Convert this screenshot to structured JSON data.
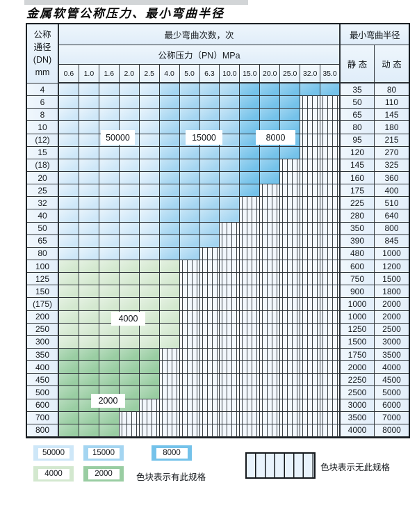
{
  "title": "金属软管公称压力、最小弯曲半径",
  "colors": {
    "cycles_50000": "#cee7f8",
    "cycles_15000": "#a4d5f1",
    "cycles_8000": "#74c2ea",
    "cycles_4000": "#d3e8cf",
    "cycles_2000": "#99cda2",
    "no_spec_stripe": "#3c4247",
    "header_bg": "#e6f0fa",
    "border": "#2d3338"
  },
  "table": {
    "dn_lines": [
      "公称",
      "通径",
      "(DN)",
      "mm"
    ],
    "cycles_header": "最少弯曲次数，次",
    "pressure_header": "公称压力（PN）MPa",
    "radius_header": "最小弯曲半径",
    "static_label": "静 态",
    "dynamic_label": "动 态",
    "pressure_cols": [
      "0.6",
      "1.0",
      "1.6",
      "2.0",
      "2.5",
      "4.0",
      "5.0",
      "6.3",
      "10.0",
      "15.0",
      "20.0",
      "25.0",
      "32.0",
      "35.0"
    ],
    "spec_legend_map": {
      "1": "50000",
      "2": "15000",
      "3": "8000",
      "4": "4000",
      "5": "2000",
      "x": "none"
    },
    "rows": [
      {
        "dn": "4",
        "spec": "11111222233333",
        "static": "35",
        "dynamic": "80"
      },
      {
        "dn": "6",
        "spec": "111112222333xx",
        "static": "50",
        "dynamic": "110"
      },
      {
        "dn": "8",
        "spec": "111112222333xx",
        "static": "65",
        "dynamic": "145"
      },
      {
        "dn": "10",
        "spec": "111112222333xx",
        "static": "80",
        "dynamic": "180"
      },
      {
        "dn": "(12)",
        "spec": "111112222333xx",
        "static": "95",
        "dynamic": "215"
      },
      {
        "dn": "15",
        "spec": "111112222333xx",
        "static": "120",
        "dynamic": "270"
      },
      {
        "dn": "(18)",
        "spec": "11111222233xxx",
        "static": "145",
        "dynamic": "325"
      },
      {
        "dn": "20",
        "spec": "11111222233xxx",
        "static": "160",
        "dynamic": "360"
      },
      {
        "dn": "25",
        "spec": "1111122223xxxx",
        "static": "175",
        "dynamic": "400"
      },
      {
        "dn": "32",
        "spec": "111112222xxxxx",
        "static": "225",
        "dynamic": "510"
      },
      {
        "dn": "40",
        "spec": "111112222xxxxx",
        "static": "280",
        "dynamic": "640"
      },
      {
        "dn": "50",
        "spec": "11111222xxxxxx",
        "static": "350",
        "dynamic": "800"
      },
      {
        "dn": "65",
        "spec": "11111222xxxxxx",
        "static": "390",
        "dynamic": "845"
      },
      {
        "dn": "80",
        "spec": "1111122xxxxxxx",
        "static": "480",
        "dynamic": "1000"
      },
      {
        "dn": "100",
        "spec": "444444xxxxxxxx",
        "static": "600",
        "dynamic": "1200"
      },
      {
        "dn": "125",
        "spec": "444444xxxxxxxx",
        "static": "750",
        "dynamic": "1500"
      },
      {
        "dn": "150",
        "spec": "444444xxxxxxxx",
        "static": "900",
        "dynamic": "1800"
      },
      {
        "dn": "(175)",
        "spec": "444444xxxxxxxx",
        "static": "1000",
        "dynamic": "2000"
      },
      {
        "dn": "200",
        "spec": "444444xxxxxxxx",
        "static": "1000",
        "dynamic": "2000"
      },
      {
        "dn": "250",
        "spec": "444444xxxxxxxx",
        "static": "1250",
        "dynamic": "2500"
      },
      {
        "dn": "300",
        "spec": "444444xxxxxxxx",
        "static": "1500",
        "dynamic": "3000"
      },
      {
        "dn": "350",
        "spec": "55555xxxxxxxxx",
        "static": "1750",
        "dynamic": "3500"
      },
      {
        "dn": "400",
        "spec": "55555xxxxxxxxx",
        "static": "2000",
        "dynamic": "4000"
      },
      {
        "dn": "450",
        "spec": "55555xxxxxxxxx",
        "static": "2250",
        "dynamic": "4500"
      },
      {
        "dn": "500",
        "spec": "55555xxxxxxxxx",
        "static": "2500",
        "dynamic": "5000"
      },
      {
        "dn": "600",
        "spec": "5555xxxxxxxxxx",
        "static": "3000",
        "dynamic": "6000"
      },
      {
        "dn": "700",
        "spec": "555xxxxxxxxxxx",
        "static": "3500",
        "dynamic": "7000"
      },
      {
        "dn": "800",
        "spec": "555xxxxxxxxxxx",
        "static": "4000",
        "dynamic": "8000"
      }
    ]
  },
  "overlays": [
    {
      "text": "50000"
    },
    {
      "text": "15000"
    },
    {
      "text": "8000"
    },
    {
      "text": "4000"
    },
    {
      "text": "2000"
    }
  ],
  "legend": {
    "blocks": [
      {
        "value": "50000"
      },
      {
        "value": "15000"
      },
      {
        "value": "8000"
      },
      {
        "value": "4000"
      },
      {
        "value": "2000"
      }
    ],
    "has_spec_note": "色块表示有此规格",
    "no_spec_note": "色块表示无此规格"
  }
}
